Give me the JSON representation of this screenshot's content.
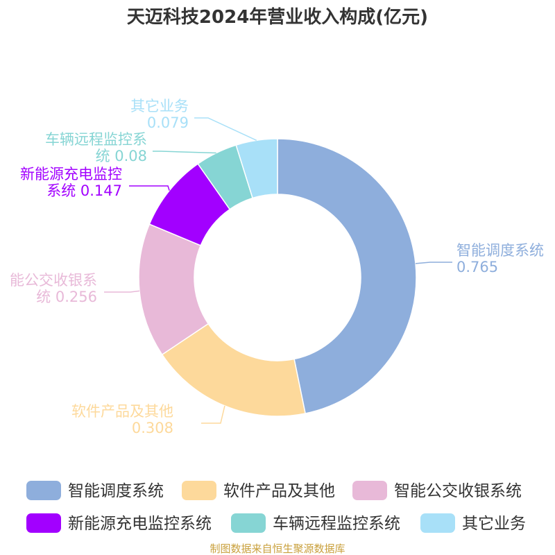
{
  "chart_data": {
    "type": "pie",
    "title": "天迈科技2024年营业收入构成(亿元)",
    "unit": "亿元",
    "slices": [
      {
        "name": "智能调度系统",
        "label_lines": [
          "智能调度系统",
          "0.765"
        ],
        "value": 0.765,
        "color": "#8eaedc"
      },
      {
        "name": "软件产品及其他",
        "label_lines": [
          "软件产品及其他",
          "0.308"
        ],
        "value": 0.308,
        "color": "#fdd99b"
      },
      {
        "name": "智能公交收银系统",
        "label_lines": [
          "能公交收银系",
          "统 0.256"
        ],
        "value": 0.256,
        "color": "#e8b9d8"
      },
      {
        "name": "新能源充电监控系统",
        "label_lines": [
          "新能源充电监控",
          "系统 0.147"
        ],
        "value": 0.147,
        "color": "#a200ff"
      },
      {
        "name": "车辆远程监控系统",
        "label_lines": [
          "车辆远程监控系",
          "统 0.08"
        ],
        "value": 0.08,
        "color": "#86d5d4"
      },
      {
        "name": "其它业务",
        "label_lines": [
          "其它业务",
          "0.079"
        ],
        "value": 0.079,
        "color": "#a8e0f8"
      }
    ],
    "legend": {
      "placement": "bottom",
      "items": [
        "智能调度系统",
        "软件产品及其他",
        "智能公交收银系统",
        "新能源充电监控系统",
        "车辆远程监控系统",
        "其它业务"
      ]
    },
    "source": "制图数据来自恒生聚源数据库"
  }
}
